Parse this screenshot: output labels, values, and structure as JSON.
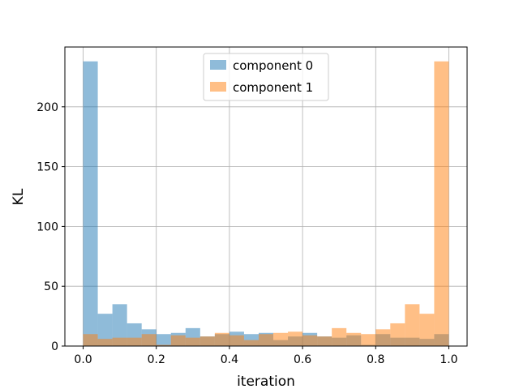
{
  "chart_data": {
    "type": "bar",
    "subtype": "overlapping-histogram",
    "title": "",
    "xlabel": "iteration",
    "ylabel": "KL",
    "xlim": [
      -0.05,
      1.05
    ],
    "ylim": [
      0,
      250
    ],
    "xticks": [
      "0.0",
      "0.2",
      "0.4",
      "0.6",
      "0.8",
      "1.0"
    ],
    "yticks": [
      "0",
      "50",
      "100",
      "150",
      "200"
    ],
    "grid": true,
    "legend_position": "top-center",
    "bin_edges": [
      0.0,
      0.04,
      0.08,
      0.12,
      0.16,
      0.2,
      0.24,
      0.28,
      0.32,
      0.36,
      0.4,
      0.44,
      0.48,
      0.52,
      0.56,
      0.6,
      0.64,
      0.68,
      0.72,
      0.76,
      0.8,
      0.84,
      0.88,
      0.92,
      0.96,
      1.0
    ],
    "series": [
      {
        "name": "component 0",
        "color": "#1f77b4",
        "opacity": 0.5,
        "values": [
          238,
          27,
          35,
          19,
          14,
          10,
          11,
          15,
          8,
          10,
          12,
          10,
          11,
          5,
          8,
          11,
          8,
          7,
          9,
          1,
          10,
          7,
          7,
          6,
          10
        ]
      },
      {
        "name": "component 1",
        "color": "#ff7f0e",
        "opacity": 0.5,
        "values": [
          10,
          6,
          7,
          7,
          10,
          1,
          9,
          7,
          8,
          11,
          9,
          5,
          10,
          11,
          12,
          9,
          8,
          15,
          11,
          10,
          14,
          19,
          35,
          27,
          238
        ]
      }
    ]
  }
}
